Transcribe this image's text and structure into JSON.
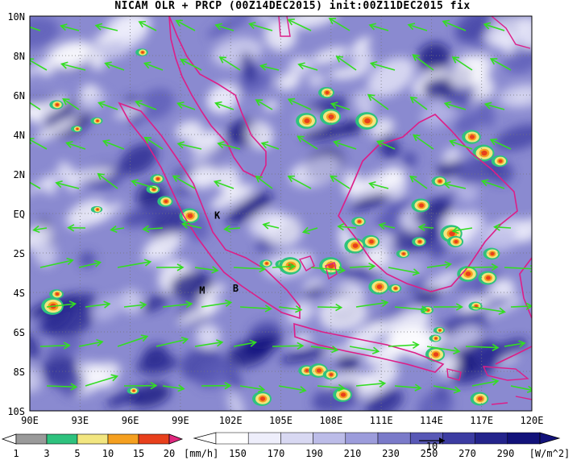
{
  "title": "NICAM OLR + PRCP (00Z14DEC2015) init:00Z11DEC2015 fix",
  "map": {
    "lon_labels": [
      "90E",
      "93E",
      "96E",
      "99E",
      "102E",
      "105E",
      "108E",
      "111E",
      "114E",
      "117E",
      "120E"
    ],
    "lat_labels": [
      "10N",
      "8N",
      "6N",
      "4N",
      "2N",
      "EQ",
      "2S",
      "4S",
      "6S",
      "8S",
      "10S"
    ],
    "station_markers": [
      {
        "label": "K",
        "lon": 101.2,
        "lat": -0.1
      },
      {
        "label": "M",
        "lon": 100.3,
        "lat": -3.9
      },
      {
        "label": "B",
        "lon": 102.3,
        "lat": -3.8
      }
    ],
    "vector_ref_label": "10"
  },
  "precip_legend": {
    "values": [
      "1",
      "3",
      "5",
      "10",
      "15",
      "20"
    ],
    "unit": "[mm/h]",
    "colors": [
      "#9a9a9a",
      "#2ec27e",
      "#f2e680",
      "#f5a020",
      "#e8401c",
      "#e0287e"
    ]
  },
  "olr_legend": {
    "values": [
      "150",
      "170",
      "190",
      "210",
      "230",
      "250",
      "270",
      "290"
    ],
    "unit": "[W/m^2]",
    "colors": [
      "#ffffff",
      "#eeeefb",
      "#d8d8f2",
      "#bcbce8",
      "#9c9cdb",
      "#7a7ac9",
      "#5858b6",
      "#3c3ca2",
      "#24248c",
      "#12127a"
    ]
  },
  "colors": {
    "vector": "#33dd22",
    "coast": "#dd1e88",
    "cloud_base": "#4a4ab0"
  }
}
